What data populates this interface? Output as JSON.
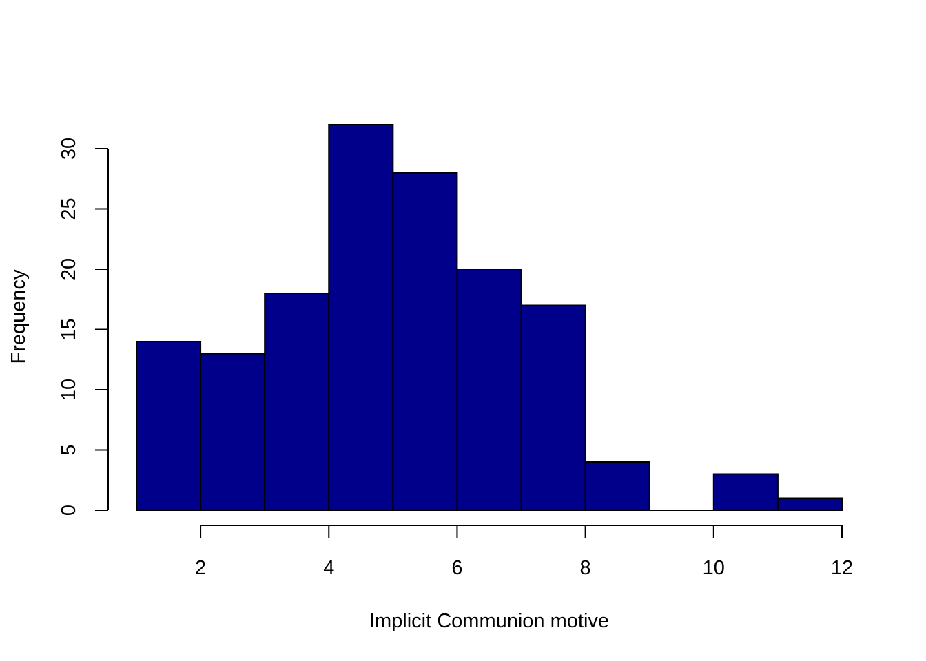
{
  "chart_data": {
    "type": "bar",
    "title": "",
    "xlabel": "Implicit Communion motive",
    "ylabel": "Frequency",
    "bins": [
      {
        "from": 1,
        "to": 2,
        "count": 14
      },
      {
        "from": 2,
        "to": 3,
        "count": 13
      },
      {
        "from": 3,
        "to": 4,
        "count": 18
      },
      {
        "from": 4,
        "to": 5,
        "count": 32
      },
      {
        "from": 5,
        "to": 6,
        "count": 28
      },
      {
        "from": 6,
        "to": 7,
        "count": 20
      },
      {
        "from": 7,
        "to": 8,
        "count": 17
      },
      {
        "from": 8,
        "to": 9,
        "count": 4
      },
      {
        "from": 9,
        "to": 10,
        "count": 0
      },
      {
        "from": 10,
        "to": 11,
        "count": 3
      },
      {
        "from": 11,
        "to": 12,
        "count": 1
      }
    ],
    "xlim": [
      1,
      12
    ],
    "ylim": [
      0,
      32
    ],
    "x_ticks": [
      "2",
      "4",
      "6",
      "8",
      "10",
      "12"
    ],
    "y_ticks": [
      "0",
      "5",
      "10",
      "15",
      "20",
      "25",
      "30"
    ],
    "bar_color": "#00008B",
    "border_color": "#000000",
    "grid": false,
    "legend": "none"
  }
}
